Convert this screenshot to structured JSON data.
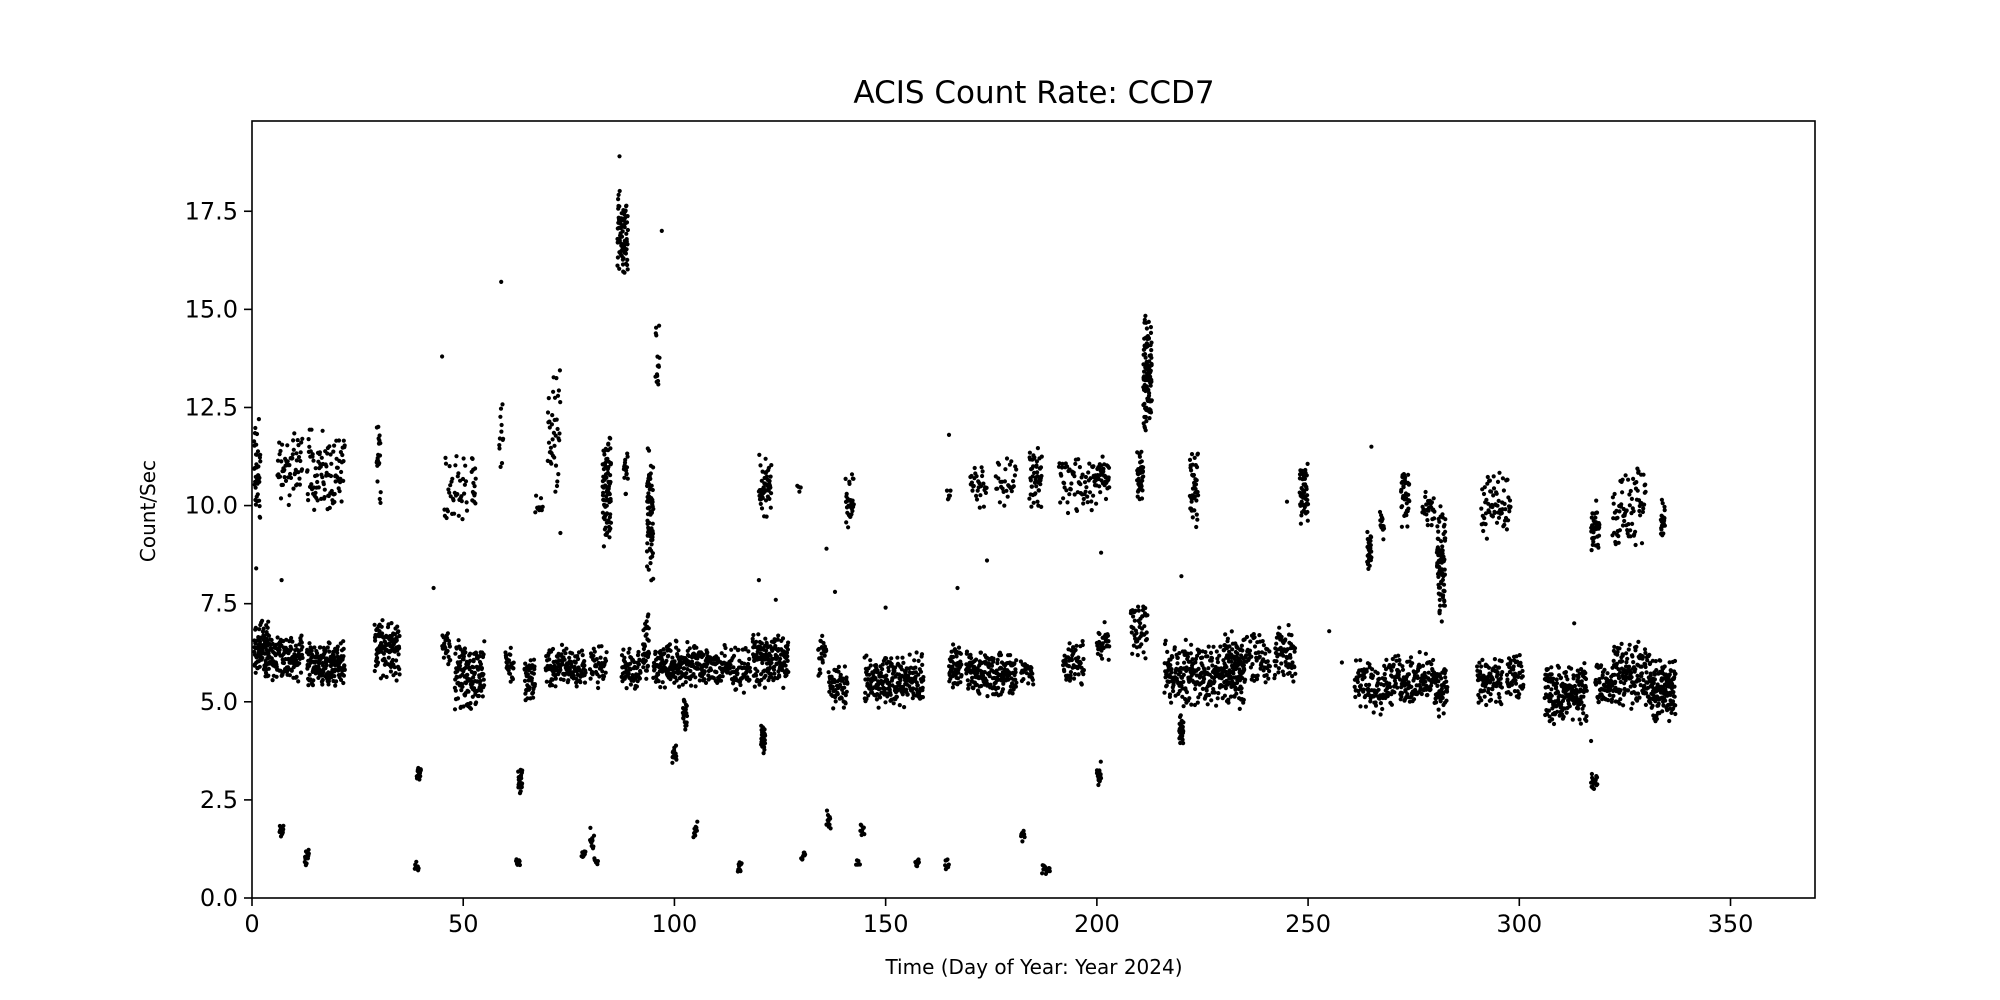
{
  "chart_data": {
    "type": "scatter",
    "title": "ACIS Count Rate: CCD7",
    "xlabel": "Time (Day of Year: Year 2024)",
    "ylabel": "Count/Sec",
    "xlim": [
      0,
      370
    ],
    "ylim": [
      0,
      19.8
    ],
    "xticks": [
      0,
      50,
      100,
      150,
      200,
      250,
      300,
      350
    ],
    "yticks": [
      0,
      2.5,
      5,
      7.5,
      10,
      12.5,
      15,
      17.5
    ],
    "xtick_labels": [
      "0",
      "50",
      "100",
      "150",
      "200",
      "250",
      "300",
      "350"
    ],
    "ytick_labels": [
      "0.0",
      "2.5",
      "5.0",
      "7.5",
      "10.0",
      "12.5",
      "15.0",
      "17.5"
    ],
    "marker_color": "#000000",
    "grid": false,
    "clusters": [
      [
        0.5,
        4,
        5.6,
        7.2,
        90
      ],
      [
        3,
        12,
        5.5,
        6.8,
        150
      ],
      [
        13,
        22,
        5.3,
        6.6,
        180
      ],
      [
        29,
        35,
        5.5,
        7.2,
        120
      ],
      [
        39,
        40,
        2.9,
        3.5,
        20
      ],
      [
        45,
        47,
        5.8,
        6.9,
        25
      ],
      [
        48,
        55,
        4.6,
        6.7,
        150
      ],
      [
        60,
        62,
        5.4,
        6.5,
        30
      ],
      [
        63,
        64,
        2.6,
        3.4,
        25
      ],
      [
        64.5,
        67,
        4.9,
        6.3,
        50
      ],
      [
        69.5,
        79,
        5.3,
        6.5,
        140
      ],
      [
        80,
        84,
        5.3,
        6.5,
        40
      ],
      [
        86.5,
        89,
        15.8,
        18.1,
        80
      ],
      [
        87.5,
        92,
        5.2,
        6.4,
        70
      ],
      [
        92.5,
        94,
        5.5,
        7.4,
        40
      ],
      [
        95,
        108,
        5.3,
        6.6,
        220
      ],
      [
        99.5,
        100.5,
        3.4,
        3.9,
        20
      ],
      [
        102,
        103,
        4.2,
        5.1,
        25
      ],
      [
        108,
        118,
        5.2,
        6.5,
        120
      ],
      [
        118.5,
        127,
        5.3,
        6.8,
        170
      ],
      [
        120.5,
        121.5,
        3.6,
        4.5,
        30
      ],
      [
        134,
        136,
        5.6,
        6.9,
        25
      ],
      [
        136.5,
        141,
        4.8,
        6.0,
        60
      ],
      [
        145,
        159,
        4.8,
        6.3,
        240
      ],
      [
        165,
        168,
        5.2,
        6.5,
        60
      ],
      [
        169,
        181,
        5.1,
        6.4,
        200
      ],
      [
        182,
        185,
        5.4,
        6.2,
        30
      ],
      [
        192,
        197,
        5.3,
        6.6,
        60
      ],
      [
        200,
        203,
        5.8,
        7.1,
        30
      ],
      [
        208,
        212,
        6.0,
        7.7,
        50
      ],
      [
        200,
        201,
        2.8,
        3.5,
        25
      ],
      [
        216,
        235,
        4.8,
        6.6,
        320
      ],
      [
        219.5,
        220.5,
        3.8,
        4.8,
        30
      ],
      [
        230,
        241,
        5.4,
        6.9,
        120
      ],
      [
        242,
        247,
        5.5,
        7.0,
        70
      ],
      [
        261,
        268,
        4.6,
        6.2,
        90
      ],
      [
        268,
        280,
        4.8,
        6.3,
        170
      ],
      [
        280,
        283,
        4.6,
        6.1,
        50
      ],
      [
        290,
        296,
        4.7,
        6.2,
        90
      ],
      [
        297,
        301,
        4.9,
        6.3,
        60
      ],
      [
        306,
        316,
        4.4,
        6.0,
        200
      ],
      [
        317,
        318.5,
        2.7,
        3.3,
        20
      ],
      [
        318,
        322,
        4.8,
        6.1,
        60
      ],
      [
        322,
        331,
        4.7,
        6.6,
        170
      ],
      [
        331,
        337,
        4.4,
        6.2,
        160
      ],
      [
        0.5,
        2,
        9.4,
        12.5,
        40
      ],
      [
        6,
        12,
        9.8,
        12.0,
        60
      ],
      [
        13,
        22,
        9.6,
        12.2,
        100
      ],
      [
        29.5,
        30.5,
        9.9,
        12.4,
        20
      ],
      [
        45.5,
        51,
        9.3,
        11.5,
        40
      ],
      [
        52,
        53,
        9.7,
        11.3,
        15
      ],
      [
        58.5,
        59.5,
        10.3,
        12.8,
        12
      ],
      [
        67,
        69,
        9.7,
        10.3,
        10
      ],
      [
        70,
        73,
        9.3,
        14.1,
        40
      ],
      [
        83,
        85,
        8.8,
        12.0,
        90
      ],
      [
        88,
        89,
        10.1,
        11.7,
        15
      ],
      [
        93.5,
        95,
        7.7,
        11.8,
        80
      ],
      [
        95.5,
        96.5,
        12.6,
        14.9,
        15
      ],
      [
        120,
        123,
        9.6,
        11.5,
        50
      ],
      [
        129,
        130,
        10.3,
        10.6,
        4
      ],
      [
        140.5,
        142.5,
        9.4,
        10.9,
        30
      ],
      [
        164.5,
        165.5,
        10.1,
        10.5,
        6
      ],
      [
        170,
        174,
        9.9,
        11.2,
        30
      ],
      [
        176,
        181,
        9.9,
        11.4,
        30
      ],
      [
        184,
        187,
        9.8,
        11.6,
        50
      ],
      [
        191,
        199,
        9.7,
        11.5,
        60
      ],
      [
        199,
        203,
        10.0,
        11.4,
        50
      ],
      [
        209.5,
        211,
        10.1,
        11.5,
        40
      ],
      [
        211,
        213,
        11.7,
        14.9,
        120
      ],
      [
        222,
        224,
        9.4,
        11.5,
        40
      ],
      [
        248,
        250,
        9.3,
        11.3,
        50
      ],
      [
        264,
        265,
        8.2,
        9.4,
        30
      ],
      [
        267,
        268,
        9.1,
        10.0,
        15
      ],
      [
        272,
        274,
        9.4,
        11.0,
        40
      ],
      [
        277,
        280,
        9.4,
        10.4,
        30
      ],
      [
        280.5,
        282.5,
        6.9,
        10.2,
        90
      ],
      [
        291,
        298,
        9.1,
        11.0,
        70
      ],
      [
        317,
        319,
        8.8,
        10.2,
        40
      ],
      [
        322,
        330,
        8.8,
        11.0,
        80
      ],
      [
        333.5,
        334.5,
        8.9,
        10.3,
        25
      ],
      [
        6.5,
        7.5,
        1.5,
        1.9,
        14
      ],
      [
        12.5,
        13.5,
        0.8,
        1.3,
        14
      ],
      [
        38.5,
        39.5,
        0.6,
        1.0,
        10
      ],
      [
        62.5,
        63.5,
        0.75,
        1.05,
        10
      ],
      [
        78,
        79,
        1.0,
        1.25,
        8
      ],
      [
        80,
        81,
        1.2,
        1.8,
        10
      ],
      [
        81,
        82,
        0.8,
        1.05,
        8
      ],
      [
        104.5,
        105.5,
        1.5,
        2.1,
        10
      ],
      [
        115,
        116,
        0.6,
        1.0,
        10
      ],
      [
        130,
        131,
        0.8,
        1.2,
        10
      ],
      [
        136,
        137,
        1.6,
        2.4,
        12
      ],
      [
        143,
        144,
        0.75,
        1.0,
        6
      ],
      [
        144,
        145,
        1.5,
        2.0,
        10
      ],
      [
        157,
        158,
        0.7,
        1.1,
        8
      ],
      [
        164,
        165,
        0.7,
        1.05,
        8
      ],
      [
        182,
        183,
        1.4,
        1.8,
        8
      ],
      [
        187,
        189,
        0.5,
        1.0,
        14
      ]
    ],
    "outliers": [
      [
        1,
        8.4
      ],
      [
        7,
        8.1
      ],
      [
        43,
        7.9
      ],
      [
        45,
        13.8
      ],
      [
        59,
        15.7
      ],
      [
        73,
        9.3
      ],
      [
        87,
        18.9
      ],
      [
        97,
        17.0
      ],
      [
        120,
        8.1
      ],
      [
        124,
        7.6
      ],
      [
        136,
        8.9
      ],
      [
        138,
        7.8
      ],
      [
        150,
        7.4
      ],
      [
        165,
        11.8
      ],
      [
        167,
        7.9
      ],
      [
        174,
        8.6
      ],
      [
        201,
        8.8
      ],
      [
        220,
        8.2
      ],
      [
        245,
        10.1
      ],
      [
        255,
        6.8
      ],
      [
        258,
        6.0
      ],
      [
        265,
        11.5
      ],
      [
        313,
        7.0
      ],
      [
        317,
        4.0
      ]
    ]
  }
}
